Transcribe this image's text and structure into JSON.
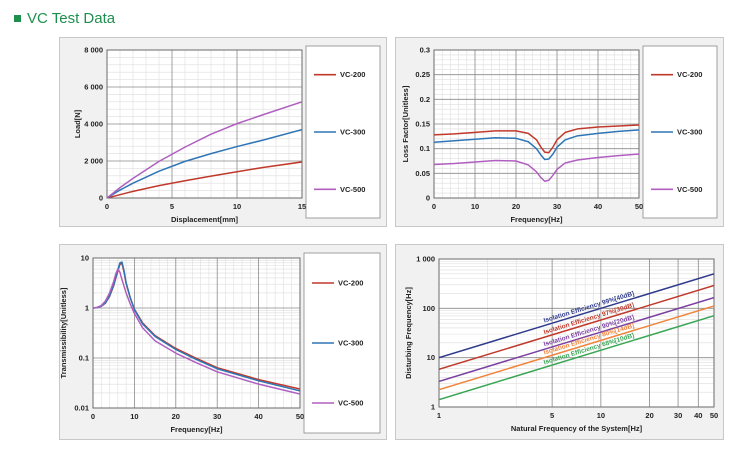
{
  "heading": {
    "title": "VC Test Data",
    "accent_color": "#1f8f4e"
  },
  "chart_data": [
    {
      "type": "line",
      "xlabel": "Displacement[mm]",
      "ylabel": "Load[N]",
      "xlim": [
        0,
        15
      ],
      "ylim": [
        0,
        8000
      ],
      "x_scale": "linear",
      "y_scale": "linear",
      "x_ticks": [
        0,
        5,
        10,
        15
      ],
      "x_tick_labels": [
        "0",
        "5",
        "10",
        "15"
      ],
      "y_ticks": [
        0,
        2000,
        4000,
        6000,
        8000
      ],
      "y_tick_labels": [
        "0",
        "2 000",
        "4 000",
        "6 000",
        "8 000"
      ],
      "grid": true,
      "legend_position": "right",
      "series": [
        {
          "name": "VC-200",
          "color": "#c0392b",
          "x": [
            0,
            1,
            2,
            4,
            6,
            8,
            10,
            12,
            15
          ],
          "y": [
            0,
            180,
            360,
            670,
            930,
            1180,
            1420,
            1650,
            1950
          ]
        },
        {
          "name": "VC-300",
          "color": "#2e75b6",
          "x": [
            0,
            1,
            2,
            4,
            6,
            8,
            10,
            12,
            15
          ],
          "y": [
            0,
            430,
            800,
            1450,
            1980,
            2400,
            2780,
            3130,
            3700
          ]
        },
        {
          "name": "VC-500",
          "color": "#b05fc0",
          "x": [
            0,
            1,
            2,
            4,
            6,
            8,
            10,
            12,
            15
          ],
          "y": [
            0,
            560,
            1060,
            1980,
            2750,
            3450,
            4020,
            4500,
            5200
          ]
        }
      ]
    },
    {
      "type": "line",
      "xlabel": "Frequency[Hz]",
      "ylabel": "Loss Factor[Unitless]",
      "xlim": [
        0,
        50
      ],
      "ylim": [
        0,
        0.3
      ],
      "x_scale": "linear",
      "y_scale": "linear",
      "x_ticks": [
        0,
        10,
        20,
        30,
        40,
        50
      ],
      "x_tick_labels": [
        "0",
        "10",
        "20",
        "30",
        "40",
        "50"
      ],
      "y_ticks": [
        0,
        0.05,
        0.1,
        0.15,
        0.2,
        0.25,
        0.3
      ],
      "y_tick_labels": [
        "0",
        "0.05",
        "0.1",
        "0.15",
        "0.2",
        "0.25",
        "0.3"
      ],
      "grid": true,
      "legend_position": "right",
      "series": [
        {
          "name": "VC-200",
          "color": "#c0392b",
          "x": [
            0,
            5,
            10,
            15,
            20,
            23,
            25,
            26,
            27,
            28,
            29,
            30,
            32,
            35,
            40,
            45,
            50
          ],
          "y": [
            0.128,
            0.13,
            0.133,
            0.136,
            0.136,
            0.131,
            0.118,
            0.104,
            0.093,
            0.092,
            0.103,
            0.118,
            0.133,
            0.14,
            0.144,
            0.146,
            0.148
          ]
        },
        {
          "name": "VC-300",
          "color": "#2e75b6",
          "x": [
            0,
            5,
            10,
            15,
            20,
            23,
            25,
            26,
            27,
            28,
            29,
            30,
            32,
            35,
            40,
            45,
            50
          ],
          "y": [
            0.113,
            0.116,
            0.119,
            0.122,
            0.121,
            0.114,
            0.1,
            0.088,
            0.078,
            0.079,
            0.089,
            0.103,
            0.118,
            0.126,
            0.131,
            0.135,
            0.138
          ]
        },
        {
          "name": "VC-500",
          "color": "#b05fc0",
          "x": [
            0,
            5,
            10,
            15,
            20,
            23,
            25,
            26,
            27,
            28,
            29,
            30,
            32,
            35,
            40,
            45,
            50
          ],
          "y": [
            0.068,
            0.07,
            0.073,
            0.076,
            0.075,
            0.067,
            0.053,
            0.042,
            0.034,
            0.036,
            0.046,
            0.058,
            0.071,
            0.077,
            0.082,
            0.086,
            0.089
          ]
        }
      ]
    },
    {
      "type": "line",
      "xlabel": "Frequency[Hz]",
      "ylabel": "Transmissibility[Unitless]",
      "xlim": [
        0,
        50
      ],
      "ylim": [
        0.01,
        10
      ],
      "x_scale": "linear",
      "y_scale": "log",
      "x_ticks": [
        0,
        10,
        20,
        30,
        40,
        50
      ],
      "x_tick_labels": [
        "0",
        "10",
        "20",
        "30",
        "40",
        "50"
      ],
      "y_ticks": [
        0.01,
        0.1,
        1,
        10
      ],
      "y_tick_labels": [
        "0.01",
        "0.1",
        "1",
        "10"
      ],
      "grid": true,
      "legend_position": "right",
      "series": [
        {
          "name": "VC-200",
          "color": "#c0392b",
          "x": [
            0,
            1,
            2,
            3,
            4,
            5,
            6,
            6.5,
            7,
            7.5,
            8,
            9,
            10,
            12,
            15,
            20,
            25,
            30,
            40,
            50
          ],
          "y": [
            1,
            1.02,
            1.08,
            1.25,
            1.7,
            2.8,
            5.5,
            7.5,
            7.8,
            5.2,
            3.1,
            1.6,
            0.95,
            0.5,
            0.28,
            0.155,
            0.098,
            0.064,
            0.037,
            0.024
          ]
        },
        {
          "name": "VC-300",
          "color": "#2e75b6",
          "x": [
            0,
            1,
            2,
            3,
            4,
            5,
            6,
            6.5,
            7,
            7.5,
            8,
            9,
            10,
            12,
            15,
            20,
            25,
            30,
            40,
            50
          ],
          "y": [
            1,
            1.02,
            1.09,
            1.27,
            1.75,
            2.9,
            5.8,
            8.0,
            8.3,
            5.5,
            3.2,
            1.6,
            0.93,
            0.48,
            0.27,
            0.148,
            0.093,
            0.061,
            0.035,
            0.022
          ]
        },
        {
          "name": "VC-500",
          "color": "#b05fc0",
          "x": [
            0,
            1,
            2,
            3,
            4,
            5,
            5.5,
            6,
            6.5,
            7,
            8,
            9,
            10,
            12,
            15,
            20,
            25,
            30,
            40,
            50
          ],
          "y": [
            1,
            1.03,
            1.12,
            1.38,
            2.0,
            3.4,
            4.8,
            6.0,
            5.2,
            3.7,
            2.0,
            1.2,
            0.78,
            0.4,
            0.22,
            0.125,
            0.08,
            0.053,
            0.03,
            0.019
          ]
        }
      ]
    },
    {
      "type": "line",
      "xlabel": "Natural Frequency of the System[Hz]",
      "ylabel": "Disturbing Frequency[Hz]",
      "xlim": [
        1,
        50
      ],
      "ylim": [
        1,
        1000
      ],
      "x_scale": "log",
      "y_scale": "log",
      "x_ticks": [
        1,
        5,
        10,
        20,
        30,
        40,
        50
      ],
      "x_tick_labels": [
        "1",
        "5",
        "10",
        "20",
        "30",
        "40",
        "50"
      ],
      "y_ticks": [
        1,
        10,
        100,
        1000
      ],
      "y_tick_labels": [
        "1",
        "10",
        "100",
        "1 000"
      ],
      "grid": true,
      "series": [
        {
          "name": "Isolation Efficiency 99%[40dB]",
          "color": "#2e3a8c",
          "x": [
            1,
            50
          ],
          "y": [
            10,
            500
          ]
        },
        {
          "name": "Isolation Efficiency 97%[30dB]",
          "color": "#c0392b",
          "x": [
            1,
            50
          ],
          "y": [
            5.8,
            290
          ]
        },
        {
          "name": "Isolation Efficiency 90%[20dB]",
          "color": "#7a3fa0",
          "x": [
            1,
            50
          ],
          "y": [
            3.3,
            165
          ]
        },
        {
          "name": "Isolation Efficiency 80%[14dB]",
          "color": "#f0843c",
          "x": [
            1,
            50
          ],
          "y": [
            2.24,
            112
          ]
        },
        {
          "name": "Isolation Efficiency 68%[10dB]",
          "color": "#3aa655",
          "x": [
            1,
            50
          ],
          "y": [
            1.41,
            71
          ]
        }
      ]
    }
  ]
}
